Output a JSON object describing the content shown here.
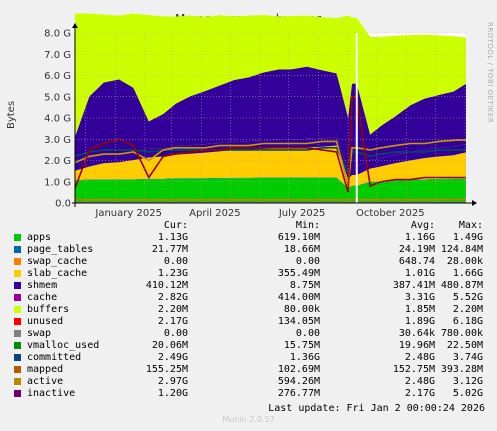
{
  "chart_data": {
    "type": "area",
    "title": "Memory usage - by year",
    "ylabel": "Bytes",
    "ylim": [
      0,
      8.0
    ],
    "yunit": "G",
    "yticks": [
      "0.0",
      "1.0 G",
      "2.0 G",
      "3.0 G",
      "4.0 G",
      "5.0 G",
      "6.0 G",
      "7.0 G",
      "8.0 G"
    ],
    "xticks": [
      "January 2025",
      "April 2025",
      "July 2025",
      "October 2025"
    ],
    "grid": true,
    "x_range": [
      "2024-11-20",
      "2026-01-02"
    ],
    "gap_dates": [
      "2025-09-10",
      "2025-09-24"
    ],
    "x": [
      "2024-11-20",
      "2024-12-05",
      "2024-12-20",
      "2025-01-05",
      "2025-01-20",
      "2025-02-05",
      "2025-02-20",
      "2025-03-05",
      "2025-03-20",
      "2025-04-05",
      "2025-04-20",
      "2025-05-05",
      "2025-05-20",
      "2025-06-05",
      "2025-06-20",
      "2025-07-05",
      "2025-07-20",
      "2025-08-05",
      "2025-08-20",
      "2025-09-01",
      "2025-09-05",
      "2025-09-10",
      "2025-09-24",
      "2025-10-05",
      "2025-10-20",
      "2025-11-05",
      "2025-11-20",
      "2025-12-05",
      "2025-12-20",
      "2026-01-02"
    ],
    "series": [
      {
        "name": "apps",
        "color": "#00CC00",
        "type": "stack",
        "values": [
          1.05,
          1.1,
          1.1,
          1.1,
          1.1,
          1.12,
          1.12,
          1.15,
          1.15,
          1.15,
          1.16,
          1.17,
          1.17,
          1.18,
          1.18,
          1.18,
          1.18,
          1.18,
          1.18,
          0.7,
          0.8,
          0.8,
          1.0,
          1.0,
          1.05,
          1.08,
          1.1,
          1.12,
          1.13,
          1.13
        ]
      },
      {
        "name": "page_tables",
        "color": "#0066B3",
        "type": "stack",
        "values": [
          0.02,
          0.02,
          0.02,
          0.02,
          0.02,
          0.02,
          0.02,
          0.02,
          0.02,
          0.02,
          0.02,
          0.02,
          0.02,
          0.02,
          0.02,
          0.02,
          0.02,
          0.02,
          0.02,
          0.02,
          0.02,
          0.02,
          0.02,
          0.02,
          0.02,
          0.02,
          0.02,
          0.02,
          0.02,
          0.02
        ]
      },
      {
        "name": "swap_cache",
        "color": "#FF8000",
        "type": "stack",
        "values": [
          0,
          0,
          0,
          0,
          0,
          0,
          0,
          0,
          0,
          0,
          0,
          0,
          0,
          0,
          0,
          0,
          0,
          0,
          0,
          0,
          0,
          0,
          0,
          0,
          0,
          0,
          0,
          0,
          0,
          0
        ]
      },
      {
        "name": "slab_cache",
        "color": "#FFCC00",
        "type": "stack",
        "values": [
          0.45,
          0.6,
          0.75,
          0.8,
          0.9,
          1.0,
          1.05,
          1.1,
          1.15,
          1.2,
          1.25,
          1.3,
          1.32,
          1.35,
          1.38,
          1.4,
          1.42,
          1.45,
          1.5,
          0.4,
          0.5,
          0.5,
          0.6,
          0.7,
          0.8,
          0.9,
          1.0,
          1.05,
          1.1,
          1.23
        ]
      },
      {
        "name": "shmem",
        "color": "#330099",
        "type": "stack",
        "values": [
          0.4,
          0.4,
          0.4,
          0.4,
          0.4,
          0.4,
          0.4,
          0.4,
          0.4,
          0.4,
          0.4,
          0.4,
          0.4,
          0.4,
          0.4,
          0.4,
          0.4,
          0.4,
          0.4,
          0.4,
          0.4,
          0.4,
          0.4,
          0.4,
          0.4,
          0.4,
          0.4,
          0.4,
          0.4,
          0.41
        ]
      },
      {
        "name": "buffers",
        "color": "#990099",
        "type": "stack",
        "values": [
          0,
          0,
          0,
          0,
          0,
          0,
          0,
          0,
          0,
          0,
          0,
          0,
          0,
          0,
          0,
          0,
          0,
          0,
          0,
          0,
          0,
          0,
          0,
          0,
          0,
          0,
          0,
          0,
          0,
          0
        ]
      },
      {
        "name": "cache",
        "color": "#330099",
        "type": "stack",
        "values": [
          1.2,
          2.9,
          3.4,
          3.5,
          3.0,
          1.3,
          1.6,
          2.0,
          2.3,
          2.5,
          2.7,
          2.9,
          3.0,
          3.2,
          3.3,
          3.3,
          3.4,
          3.2,
          3.0,
          2.5,
          3.9,
          3.9,
          1.2,
          1.5,
          1.8,
          2.2,
          2.4,
          2.5,
          2.6,
          2.82
        ]
      },
      {
        "name": "unused",
        "color": "#CCFF00",
        "type": "stack",
        "values": [
          5.8,
          3.9,
          3.2,
          3.0,
          3.5,
          5.0,
          4.6,
          4.1,
          3.8,
          3.5,
          3.3,
          3.0,
          2.9,
          2.7,
          2.5,
          2.5,
          2.4,
          2.5,
          2.6,
          4.8,
          3.1,
          3.1,
          4.6,
          4.2,
          3.8,
          3.3,
          3.0,
          2.8,
          2.6,
          2.17
        ]
      },
      {
        "name": "swap",
        "color": "#FF0000",
        "type": "stack",
        "values": [
          0,
          0,
          0,
          0,
          0,
          0,
          0,
          0,
          0,
          0,
          0,
          0,
          0,
          0,
          0,
          0,
          0,
          0,
          0,
          0,
          0,
          0,
          0,
          0,
          0,
          0,
          0,
          0,
          0,
          0
        ]
      },
      {
        "name": "vmalloc_used",
        "color": "#808080",
        "type": "line",
        "values": [
          0.02,
          0.02,
          0.02,
          0.02,
          0.02,
          0.02,
          0.02,
          0.02,
          0.02,
          0.02,
          0.02,
          0.02,
          0.02,
          0.02,
          0.02,
          0.02,
          0.02,
          0.02,
          0.02,
          0.02,
          0.02,
          0.02,
          0.02,
          0.02,
          0.02,
          0.02,
          0.02,
          0.02,
          0.02,
          0.02
        ]
      },
      {
        "name": "committed",
        "color": "#004C66",
        "type": "line",
        "values": [
          2.2,
          2.4,
          2.5,
          2.5,
          2.5,
          2.4,
          2.5,
          2.5,
          2.5,
          2.5,
          2.5,
          2.5,
          2.5,
          2.5,
          2.5,
          2.5,
          2.5,
          2.6,
          2.6,
          1.4,
          2.4,
          2.4,
          2.2,
          2.3,
          2.4,
          2.4,
          2.4,
          2.5,
          2.5,
          2.49
        ]
      },
      {
        "name": "mapped",
        "color": "#CC7A00",
        "type": "line",
        "values": [
          0.15,
          0.15,
          0.15,
          0.15,
          0.15,
          0.15,
          0.15,
          0.15,
          0.15,
          0.15,
          0.15,
          0.15,
          0.15,
          0.15,
          0.15,
          0.15,
          0.15,
          0.15,
          0.15,
          0.15,
          0.15,
          0.15,
          0.15,
          0.15,
          0.15,
          0.15,
          0.15,
          0.16,
          0.16,
          0.16
        ]
      },
      {
        "name": "active",
        "color": "#CC9900",
        "type": "line",
        "values": [
          1.9,
          2.2,
          2.3,
          2.3,
          2.4,
          2.0,
          2.5,
          2.6,
          2.6,
          2.6,
          2.7,
          2.7,
          2.7,
          2.8,
          2.8,
          2.8,
          2.8,
          2.9,
          2.9,
          0.8,
          2.6,
          2.6,
          2.5,
          2.6,
          2.7,
          2.8,
          2.8,
          2.9,
          2.95,
          2.97
        ]
      },
      {
        "name": "inactive",
        "color": "#990000",
        "type": "line",
        "values": [
          0.7,
          2.5,
          2.8,
          3.0,
          2.7,
          1.2,
          2.2,
          2.3,
          2.4,
          2.5,
          2.5,
          2.6,
          2.6,
          2.6,
          2.6,
          2.6,
          2.6,
          2.5,
          2.4,
          0.5,
          5.0,
          5.0,
          0.8,
          1.0,
          1.1,
          1.1,
          1.2,
          1.2,
          1.2,
          1.2
        ]
      }
    ]
  },
  "legend": {
    "headers": [
      "Cur:",
      "Min:",
      "Avg:",
      "Max:"
    ],
    "rows": [
      {
        "name": "apps",
        "color": "#00CC00",
        "cur": "1.13G",
        "min": "619.10M",
        "avg": "1.16G",
        "max": "1.49G"
      },
      {
        "name": "page_tables",
        "color": "#0066B3",
        "cur": "21.77M",
        "min": "18.66M",
        "avg": "24.19M",
        "max": "124.84M"
      },
      {
        "name": "swap_cache",
        "color": "#FF8000",
        "cur": "0.00",
        "min": "0.00",
        "avg": "648.74",
        "max": "28.00k"
      },
      {
        "name": "slab_cache",
        "color": "#FFCC00",
        "cur": "1.23G",
        "min": "355.49M",
        "avg": "1.01G",
        "max": "1.66G"
      },
      {
        "name": "shmem",
        "color": "#330099",
        "cur": "410.12M",
        "min": "8.75M",
        "avg": "387.41M",
        "max": "480.87M"
      },
      {
        "name": "cache",
        "color": "#990099",
        "cur": "2.82G",
        "min": "414.00M",
        "avg": "3.31G",
        "max": "5.52G"
      },
      {
        "name": "buffers",
        "color": "#CCFF00",
        "cur": "2.20M",
        "min": "80.00k",
        "avg": "1.85M",
        "max": "2.20M"
      },
      {
        "name": "unused",
        "color": "#FF0000",
        "cur": "2.17G",
        "min": "134.05M",
        "avg": "1.89G",
        "max": "6.18G"
      },
      {
        "name": "swap",
        "color": "#808080",
        "cur": "0.00",
        "min": "0.00",
        "avg": "30.64k",
        "max": "780.00k"
      },
      {
        "name": "vmalloc_used",
        "color": "#008F00",
        "cur": "20.06M",
        "min": "15.75M",
        "avg": "19.96M",
        "max": "22.50M"
      },
      {
        "name": "committed",
        "color": "#00487D",
        "cur": "2.49G",
        "min": "1.36G",
        "avg": "2.48G",
        "max": "3.74G"
      },
      {
        "name": "mapped",
        "color": "#B35A00",
        "cur": "155.25M",
        "min": "102.69M",
        "avg": "152.75M",
        "max": "393.28M"
      },
      {
        "name": "active",
        "color": "#B38F00",
        "cur": "2.97G",
        "min": "594.26M",
        "avg": "2.48G",
        "max": "3.12G"
      },
      {
        "name": "inactive",
        "color": "#6B006B",
        "cur": "1.20G",
        "min": "276.77M",
        "avg": "2.17G",
        "max": "5.02G"
      }
    ]
  },
  "footer": {
    "last_update": "Last update: Fri Jan  2 00:00:24 2026",
    "munin": "Munin 2.0.57",
    "rrdtool": "RRDTOOL / TOBI OETIKER"
  }
}
